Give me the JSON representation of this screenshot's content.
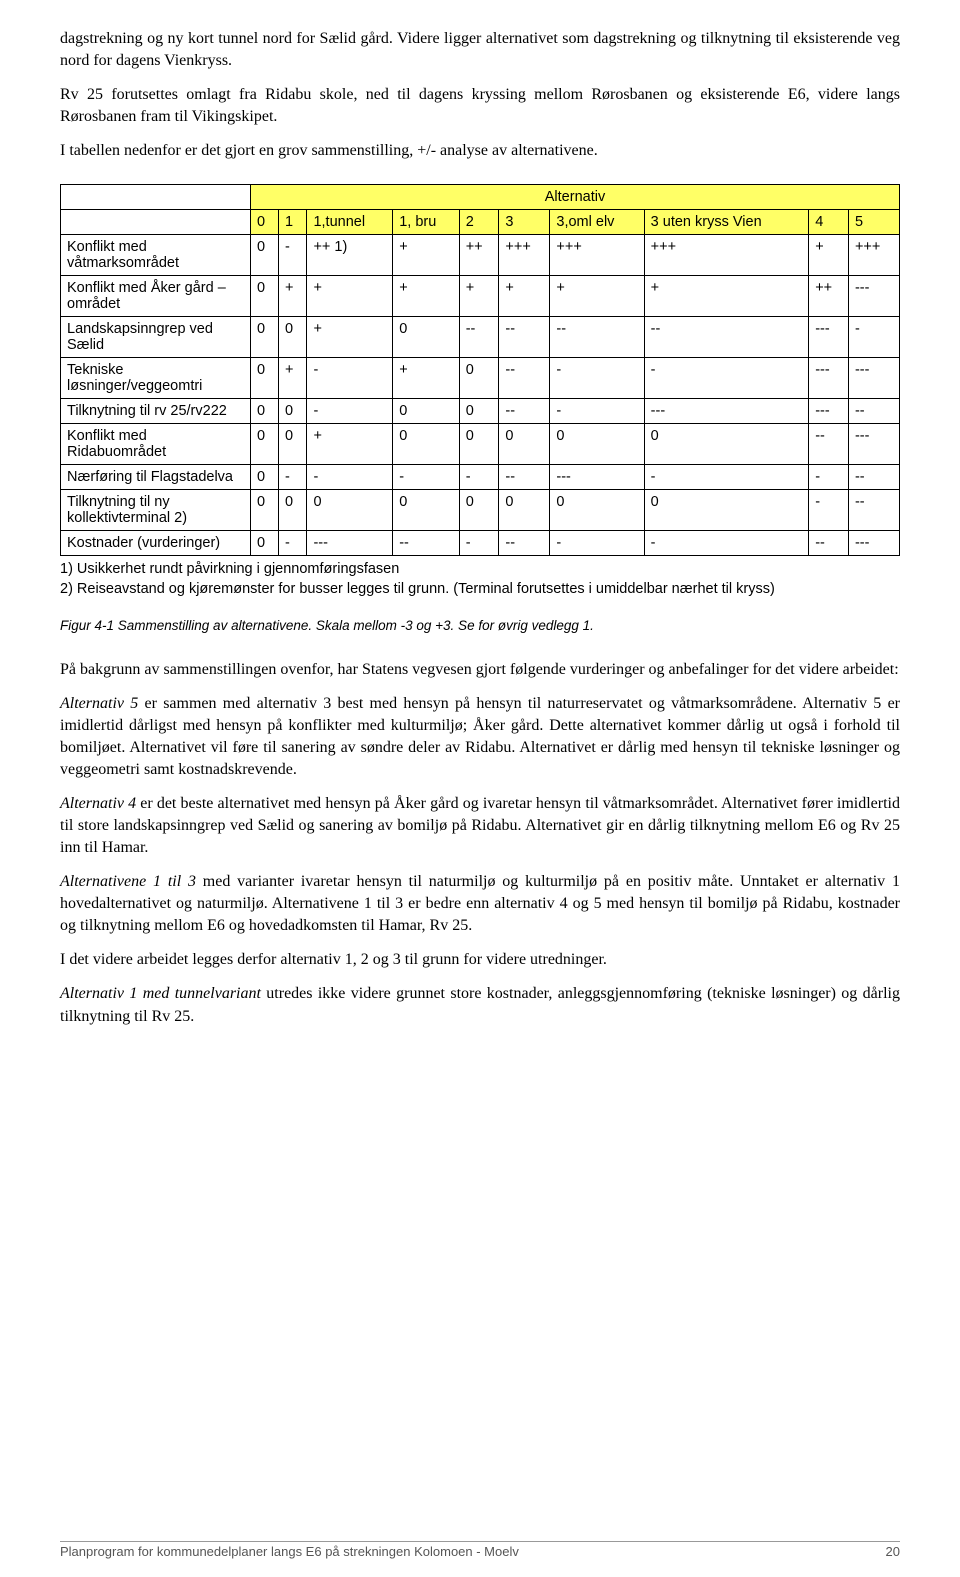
{
  "intro": {
    "p1": "dagstrekning og ny kort tunnel nord for Sælid gård. Videre ligger alternativet som dagstrekning og tilknytning til eksisterende veg nord for dagens Vienkryss.",
    "p2": "Rv 25 forutsettes omlagt fra Ridabu skole, ned til dagens kryssing mellom Rørosbanen og eksisterende E6, videre langs Rørosbanen fram til Vikingskipet.",
    "p3": "I tabellen nedenfor er det gjort en grov sammenstilling, +/- analyse av alternativene."
  },
  "table": {
    "header_title": "Alternativ",
    "cols": [
      "0",
      "1",
      "1,tunnel",
      "1, bru",
      "2",
      "3",
      "3,oml elv",
      "3 uten kryss Vien",
      "4",
      "5"
    ],
    "criteria": [
      "Konflikt med våtmarksområdet",
      "Konflikt med Åker gård – området",
      "Landskapsinngrep ved Sælid",
      "Tekniske løsninger/veggeomtri",
      "Tilknytning til rv 25/rv222",
      "Konflikt med Ridabuområdet",
      "Nærføring til Flagstadelva",
      "Tilknytning til ny kollektivterminal 2)",
      "Kostnader (vurderinger)"
    ],
    "rows": [
      [
        "0",
        "-",
        "++ 1)",
        "+",
        "++",
        "+++",
        "+++",
        "+++",
        "+",
        "+++"
      ],
      [
        "0",
        "+",
        "+",
        "+",
        "+",
        "+",
        "+",
        "+",
        "++",
        "---"
      ],
      [
        "0",
        "0",
        "+",
        "0",
        "--",
        "--",
        "--",
        "--",
        "---",
        "-"
      ],
      [
        "0",
        "+",
        "-",
        "+",
        "0",
        "--",
        "-",
        "-",
        "---",
        "---"
      ],
      [
        "0",
        "0",
        "-",
        "0",
        "0",
        "--",
        "-",
        "---",
        "---",
        "--"
      ],
      [
        "0",
        "0",
        "+",
        "0",
        "0",
        "0",
        "0",
        "0",
        "--",
        "---"
      ],
      [
        "0",
        "-",
        "-",
        "-",
        "-",
        "--",
        "---",
        "-",
        "-",
        "--"
      ],
      [
        "0",
        "0",
        "0",
        "0",
        "0",
        "0",
        "0",
        "0",
        "-",
        "--"
      ],
      [
        "0",
        "-",
        "---",
        "--",
        "-",
        "--",
        "-",
        "-",
        "--",
        "---"
      ]
    ],
    "notes": {
      "n1": "1)  Usikkerhet rundt påvirkning i gjennomføringsfasen",
      "n2": "2)  Reiseavstand og kjøremønster for busser legges til grunn. (Terminal forutsettes i umiddelbar nærhet til kryss)"
    },
    "header_bg": "#ffff66",
    "border_color": "#000000"
  },
  "caption": "Figur 4-1 Sammenstilling av alternativene. Skala mellom -3 og +3. Se for øvrig vedlegg 1.",
  "body": {
    "lead": "På bakgrunn av sammenstillingen ovenfor, har Statens vegvesen gjort følgende vurderinger og anbefalinger for det videre arbeidet:",
    "a5_label": "Alternativ 5",
    "a5_text": " er sammen med alternativ 3 best med hensyn på hensyn til naturreservatet og våtmarksområdene. Alternativ 5 er imidlertid dårligst med hensyn på konflikter med kulturmiljø; Åker gård. Dette alternativet kommer dårlig ut også i forhold til bomiljøet. Alternativet vil føre til sanering av søndre deler av Ridabu. Alternativet er dårlig med hensyn til tekniske løsninger og veggeometri samt kostnadskrevende.",
    "a4_label": "Alternativ 4",
    "a4_text": " er det beste alternativet med hensyn på Åker gård og ivaretar hensyn til våtmarksområdet. Alternativet fører imidlertid til store landskapsinngrep ved Sælid og sanering av bomiljø på Ridabu. Alternativet gir en dårlig tilknytning mellom E6 og Rv 25 inn til Hamar.",
    "a13_label": "Alternativene 1 til 3",
    "a13_text": " med varianter ivaretar hensyn til naturmiljø og kulturmiljø på en positiv måte. Unntaket er alternativ 1 hovedalternativet og naturmiljø. Alternativene 1 til 3 er bedre enn alternativ 4 og 5 med hensyn til bomiljø på Ridabu, kostnader og tilknytning mellom E6 og hovedadkomsten til Hamar, Rv 25.",
    "further": "I det videre arbeidet legges derfor alternativ 1, 2 og 3 til grunn for videre utredninger.",
    "a1t_label": "Alternativ 1 med tunnelvariant",
    "a1t_text": " utredes ikke videre grunnet store kostnader, anleggsgjennomføring (tekniske løsninger) og dårlig tilknytning til Rv 25."
  },
  "footer": {
    "text": "Planprogram for kommunedelplaner langs E6 på strekningen Kolomoen - Moelv",
    "page": "20"
  }
}
